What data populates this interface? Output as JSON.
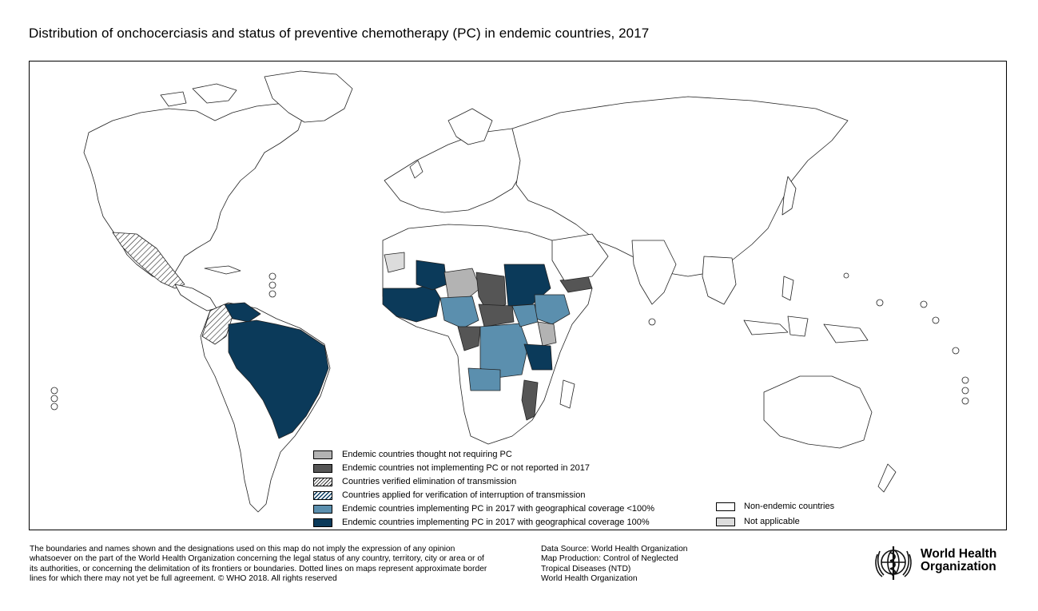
{
  "title": "Distribution of onchocerciasis and status of preventive chemotherapy (PC) in endemic countries, 2017",
  "colors": {
    "not_requiring_pc": "#b3b3b3",
    "not_implementing": "#555555",
    "verified_elimination": "hatched-black",
    "applied_verification": "hatched-blue",
    "coverage_lt_100": "#5b8fae",
    "coverage_100": "#0b3a5a",
    "non_endemic": "#ffffff",
    "not_applicable": "#dcdcdc"
  },
  "legend": [
    {
      "key": "not_requiring_pc",
      "label": "Endemic countries thought not requiring PC"
    },
    {
      "key": "not_implementing",
      "label": "Endemic countries not implementing PC or not reported in 2017"
    },
    {
      "key": "verified_elimination",
      "label": "Countries verified elimination of transmission"
    },
    {
      "key": "applied_verification",
      "label": "Countries applied for verification of interruption of transmission"
    },
    {
      "key": "coverage_lt_100",
      "label": "Endemic countries implementing PC in 2017 with geographical coverage <100%"
    },
    {
      "key": "coverage_100",
      "label": "Endemic countries implementing PC in 2017 with geographical coverage 100%"
    }
  ],
  "legend_secondary": [
    {
      "key": "non_endemic",
      "label": "Non-endemic countries"
    },
    {
      "key": "not_applicable",
      "label": "Not applicable"
    }
  ],
  "disclaimer": "The boundaries and names shown and the designations used on this map do not imply the expression of any opinion whatsoever on the part of the World Health Organization concerning the legal status of any country, territory, city or area or of its authorities, or concerning the delimitation of its frontiers or boundaries. Dotted lines on maps represent approximate border lines for which there may not yet be full agreement. © WHO 2018. All rights reserved",
  "source_lines": [
    "Data Source: World Health Organization",
    "Map Production: Control of Neglected",
    "Tropical Diseases (NTD)",
    "World Health Organization"
  ],
  "logo": {
    "line1": "World Health",
    "line2": "Organization"
  }
}
